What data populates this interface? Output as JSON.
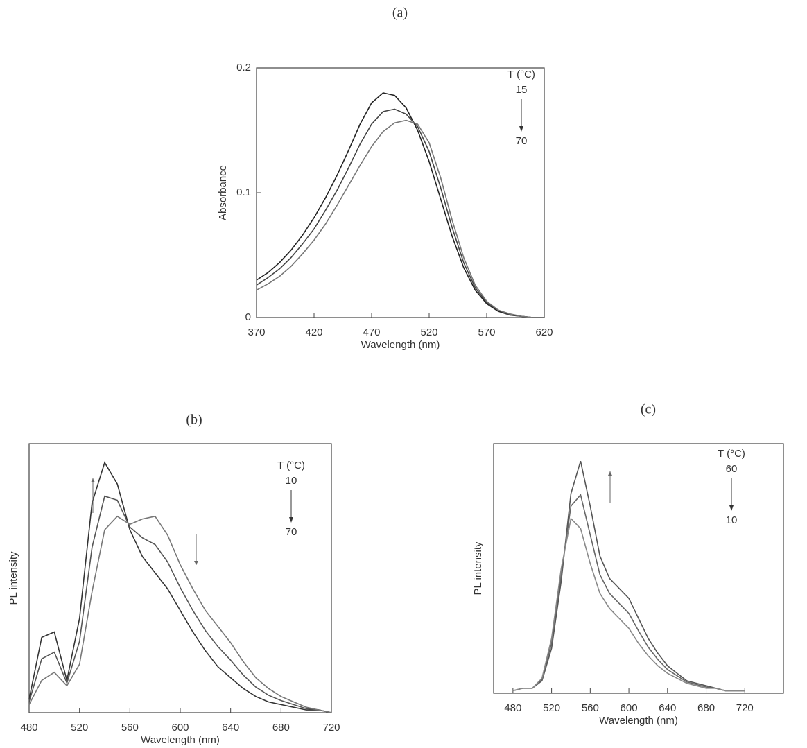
{
  "chart_data": [
    {
      "type": "line",
      "title": "(a)",
      "x_label": "Wavelength (nm)",
      "y_label": "Absorbance",
      "annotations": [
        "T (°C)",
        "15",
        "70"
      ],
      "x": [
        370,
        380,
        390,
        400,
        410,
        420,
        430,
        440,
        450,
        460,
        470,
        480,
        490,
        500,
        510,
        520,
        530,
        540,
        550,
        560,
        570,
        580,
        590,
        600,
        610,
        620
      ],
      "xlim": [
        370,
        620
      ],
      "xticks": [
        370,
        420,
        470,
        520,
        570,
        620
      ],
      "ylim": [
        0,
        0.2
      ],
      "yticks": [
        0,
        0.1,
        0.2
      ],
      "series": [
        {
          "color": "#222222",
          "values": [
            0.03,
            0.036,
            0.044,
            0.054,
            0.066,
            0.08,
            0.096,
            0.114,
            0.134,
            0.155,
            0.172,
            0.18,
            0.178,
            0.168,
            0.15,
            0.125,
            0.095,
            0.065,
            0.04,
            0.022,
            0.011,
            0.005,
            0.002,
            0.001,
            0,
            0
          ]
        },
        {
          "color": "#444444",
          "values": [
            0.026,
            0.032,
            0.039,
            0.048,
            0.059,
            0.071,
            0.086,
            0.102,
            0.12,
            0.139,
            0.155,
            0.165,
            0.167,
            0.163,
            0.153,
            0.133,
            0.104,
            0.072,
            0.044,
            0.024,
            0.012,
            0.006,
            0.002,
            0.001,
            0,
            0
          ]
        },
        {
          "color": "#777777",
          "values": [
            0.022,
            0.027,
            0.033,
            0.041,
            0.051,
            0.062,
            0.075,
            0.09,
            0.106,
            0.122,
            0.137,
            0.149,
            0.156,
            0.158,
            0.155,
            0.14,
            0.112,
            0.078,
            0.048,
            0.026,
            0.013,
            0.006,
            0.003,
            0.001,
            0,
            0
          ]
        }
      ]
    },
    {
      "type": "line",
      "title": "(b)",
      "x_label": "Wavelength (nm)",
      "y_label": "PL intensity",
      "annotations": [
        "T (°C)",
        "10",
        "70"
      ],
      "x": [
        480,
        490,
        500,
        510,
        520,
        530,
        540,
        550,
        560,
        570,
        580,
        590,
        600,
        610,
        620,
        630,
        640,
        650,
        660,
        670,
        680,
        690,
        700,
        710,
        720
      ],
      "xlim": [
        480,
        720
      ],
      "xticks": [
        480,
        520,
        560,
        600,
        640,
        680,
        720
      ],
      "ylim": [
        0,
        1
      ],
      "series": [
        {
          "color": "#333333",
          "values": [
            0.05,
            0.28,
            0.3,
            0.12,
            0.35,
            0.78,
            0.93,
            0.85,
            0.68,
            0.58,
            0.52,
            0.46,
            0.38,
            0.3,
            0.23,
            0.17,
            0.13,
            0.09,
            0.06,
            0.04,
            0.03,
            0.02,
            0.01,
            0.01,
            0
          ]
        },
        {
          "color": "#555555",
          "values": [
            0.04,
            0.2,
            0.225,
            0.11,
            0.265,
            0.615,
            0.805,
            0.79,
            0.69,
            0.65,
            0.625,
            0.56,
            0.465,
            0.38,
            0.305,
            0.245,
            0.195,
            0.14,
            0.095,
            0.065,
            0.045,
            0.03,
            0.015,
            0.01,
            0
          ]
        },
        {
          "color": "#777777",
          "values": [
            0.03,
            0.12,
            0.15,
            0.1,
            0.18,
            0.45,
            0.68,
            0.73,
            0.7,
            0.72,
            0.73,
            0.66,
            0.55,
            0.46,
            0.38,
            0.32,
            0.26,
            0.19,
            0.13,
            0.09,
            0.06,
            0.04,
            0.02,
            0.01,
            0
          ]
        }
      ]
    },
    {
      "type": "line",
      "title": "(c)",
      "x_label": "Wavelength (nm)",
      "y_label": "PL intensity",
      "annotations": [
        "T (°C)",
        "60",
        "10"
      ],
      "x": [
        480,
        490,
        500,
        510,
        520,
        530,
        540,
        550,
        560,
        570,
        580,
        590,
        600,
        610,
        620,
        630,
        640,
        650,
        660,
        670,
        680,
        690,
        700,
        710,
        720
      ],
      "xlim": [
        460,
        760
      ],
      "xticks": [
        480,
        520,
        560,
        600,
        640,
        680,
        720
      ],
      "ylim": [
        0,
        1
      ],
      "series": [
        {
          "color": "#555555",
          "values": [
            0.01,
            0.02,
            0.02,
            0.05,
            0.18,
            0.45,
            0.8,
            0.93,
            0.75,
            0.55,
            0.46,
            0.42,
            0.38,
            0.3,
            0.22,
            0.16,
            0.11,
            0.08,
            0.05,
            0.04,
            0.03,
            0.02,
            0.01,
            0.01,
            0.01
          ]
        },
        {
          "color": "#666666",
          "values": [
            0.01,
            0.02,
            0.02,
            0.055,
            0.2,
            0.475,
            0.75,
            0.795,
            0.635,
            0.475,
            0.4,
            0.36,
            0.32,
            0.25,
            0.185,
            0.135,
            0.095,
            0.07,
            0.045,
            0.035,
            0.025,
            0.02,
            0.01,
            0.01,
            0.01
          ]
        },
        {
          "color": "#888888",
          "values": [
            0.01,
            0.02,
            0.02,
            0.06,
            0.22,
            0.5,
            0.7,
            0.66,
            0.52,
            0.4,
            0.34,
            0.3,
            0.26,
            0.2,
            0.15,
            0.11,
            0.08,
            0.06,
            0.04,
            0.03,
            0.02,
            0.02,
            0.01,
            0.01,
            0.01
          ]
        }
      ]
    }
  ]
}
